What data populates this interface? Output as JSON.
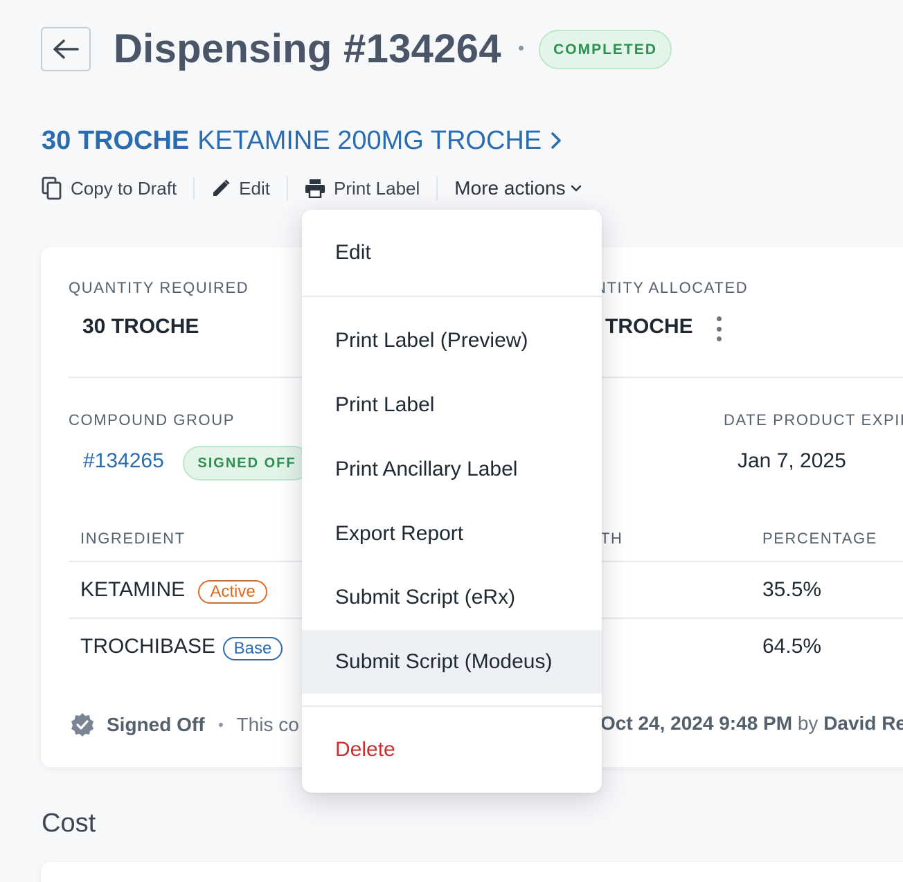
{
  "header": {
    "title": "Dispensing #134264",
    "status": "COMPLETED"
  },
  "product": {
    "quantity": "30 TROCHE",
    "name": "KETAMINE 200MG TROCHE"
  },
  "actions": {
    "copy_to_draft": "Copy to Draft",
    "edit": "Edit",
    "print_label": "Print Label",
    "more_actions": "More actions"
  },
  "details": {
    "quantity_required_label": "QUANTITY REQUIRED",
    "quantity_required_value": "30 TROCHE",
    "quantity_allocated_label": "NTITY ALLOCATED",
    "quantity_allocated_value": "TROCHE",
    "compound_group_label": "COMPOUND GROUP",
    "compound_group_id": "#134265",
    "compound_group_status": "SIGNED OFF",
    "date_expiry_label": "DATE PRODUCT EXPIR",
    "date_expiry_value": "Jan 7, 2025"
  },
  "ingredients": {
    "headers": {
      "ingredient": "INGREDIENT",
      "strength": "TH",
      "percentage": "PERCENTAGE"
    },
    "rows": [
      {
        "name": "KETAMINE",
        "tag": "Active",
        "strength_partial": "",
        "percentage": "35.5%"
      },
      {
        "name": "TROCHIBASE",
        "tag": "Base",
        "strength_partial": "",
        "percentage": "64.5%"
      }
    ]
  },
  "signoff": {
    "status": "Signed Off",
    "text_partial": "This co",
    "datetime": "Oct 24, 2024 9:48 PM",
    "by": "by",
    "user_partial": "David Re"
  },
  "cost_section": {
    "title": "Cost"
  },
  "menu": {
    "items": [
      {
        "label": "Edit"
      },
      {
        "label": "Print Label (Preview)"
      },
      {
        "label": "Print Label"
      },
      {
        "label": "Print Ancillary Label"
      },
      {
        "label": "Export Report"
      },
      {
        "label": "Submit Script (eRx)"
      },
      {
        "label": "Submit Script (Modeus)"
      },
      {
        "label": "Delete"
      }
    ]
  },
  "colors": {
    "link": "#2b6cb0",
    "success": "#2f8f52",
    "active_tag": "#dd6b20",
    "danger": "#c53030"
  }
}
